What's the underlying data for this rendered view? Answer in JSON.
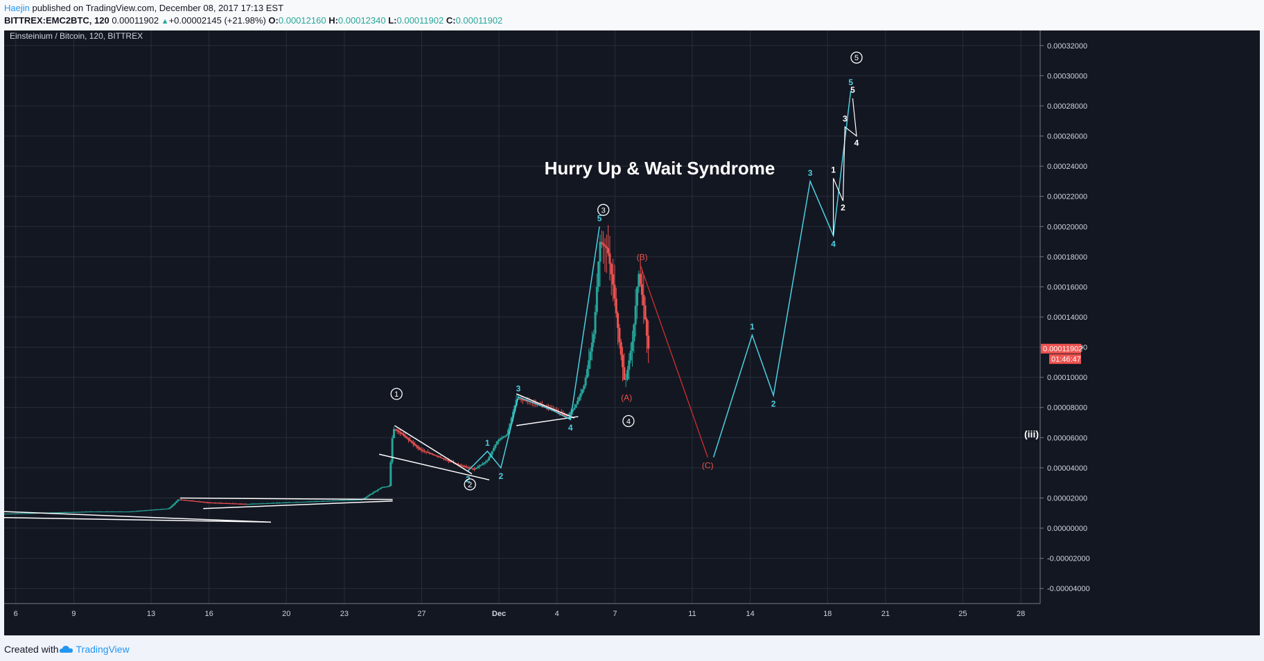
{
  "header": {
    "author": "Haejin",
    "published": " published on TradingView.com, December 08, 2017 17:13 EST",
    "symbol": "BITTREX:EMC2BTC, 120",
    "last": "0.00011902",
    "change": "+0.00002145 (+21.98%)",
    "o_label": "O:",
    "o": "0.00012160",
    "h_label": "H:",
    "h": "0.00012340",
    "l_label": "L:",
    "l": "0.00011902",
    "c_label": "C:",
    "c": "0.00011902"
  },
  "footer": {
    "created": "Created with",
    "brand": "TradingView"
  },
  "chart_data": {
    "type": "candlestick",
    "title": "Einsteinium / Bitcoin, 120, BITTREX",
    "annotation": "Hurry Up & Wait Syndrome",
    "ylim": [
      -5e-05,
      0.00033
    ],
    "y_ticks": [
      "0.00032000",
      "0.00030000",
      "0.00028000",
      "0.00026000",
      "0.00024000",
      "0.00022000",
      "0.00020000",
      "0.00018000",
      "0.00016000",
      "0.00014000",
      "0.00012000",
      "0.00010000",
      "0.00008000",
      "0.00006000",
      "0.00004000",
      "0.00002000",
      "0.00000000",
      "-0.00002000",
      "-0.00004000"
    ],
    "x_ticks": [
      "6",
      "9",
      "13",
      "16",
      "20",
      "23",
      "27",
      "Dec",
      "4",
      "7",
      "11",
      "14",
      "18",
      "21",
      "25",
      "28"
    ],
    "x_tick_days": [
      6,
      9,
      13,
      16,
      20,
      23,
      27,
      31,
      34,
      37,
      41,
      44,
      48,
      51,
      55,
      58
    ],
    "xlim": [
      5.4,
      59
    ],
    "price_label": "0.00011902",
    "countdown": "01:46:47",
    "price_path": [
      [
        5.4,
        9.5e-06
      ],
      [
        10,
        1.1e-05
      ],
      [
        12,
        1.1e-05
      ],
      [
        14,
        1.3e-05
      ],
      [
        14.5,
        1.9e-05
      ],
      [
        16,
        1.7e-05
      ],
      [
        18,
        1.6e-05
      ],
      [
        20,
        1.7e-05
      ],
      [
        22,
        1.8e-05
      ],
      [
        24,
        1.9e-05
      ],
      [
        25,
        2.7e-05
      ],
      [
        25.4,
        2.8e-05
      ],
      [
        25.6,
        6.6e-05
      ],
      [
        26,
        6.3e-05
      ],
      [
        27,
        5.2e-05
      ],
      [
        28,
        4.7e-05
      ],
      [
        29,
        4.2e-05
      ],
      [
        29.8,
        3.9e-05
      ],
      [
        30.5,
        4.5e-05
      ],
      [
        31,
        5.8e-05
      ],
      [
        31.5,
        6.2e-05
      ],
      [
        32,
        8.6e-05
      ],
      [
        33,
        8.3e-05
      ],
      [
        34,
        7.8e-05
      ],
      [
        34.6,
        7.4e-05
      ],
      [
        35,
        8e-05
      ],
      [
        35.5,
        9.5e-05
      ],
      [
        36,
        0.00013
      ],
      [
        36.3,
        0.00019
      ],
      [
        36.7,
        0.000185
      ],
      [
        37,
        0.00016
      ],
      [
        37.3,
        0.000125
      ],
      [
        37.6,
        9.5e-05
      ],
      [
        38,
        0.000125
      ],
      [
        38.3,
        0.00017
      ],
      [
        38.6,
        0.000145
      ],
      [
        38.8,
        0.000119
      ]
    ],
    "waves_cyan": [
      {
        "pts": [
          [
            29.4,
            3.8e-05
          ],
          [
            30.4,
            5.1e-05
          ],
          [
            31.1,
            4e-05
          ],
          [
            32,
            8.7e-05
          ],
          [
            33.8,
            7.8e-05
          ],
          [
            34.7,
            7.2e-05
          ],
          [
            36.2,
            0.0002
          ]
        ],
        "labels": [
          "2",
          "1",
          "2",
          "3",
          "",
          "4",
          "5"
        ]
      },
      {
        "pts": [
          [
            42.1,
            4.7e-05
          ],
          [
            44.1,
            0.000128
          ],
          [
            45.2,
            8.8e-05
          ],
          [
            47.1,
            0.00023
          ],
          [
            48.3,
            0.000194
          ],
          [
            49.2,
            0.00029
          ]
        ],
        "labels": [
          "",
          "1",
          "2",
          "3",
          "4",
          "5"
        ]
      }
    ],
    "wave_red": {
      "pts": [
        [
          38.3,
          0.000175
        ],
        [
          41.8,
          4.7e-05
        ]
      ],
      "labels": [
        "(B)",
        "(C)"
      ]
    },
    "wave_white": {
      "pts": [
        [
          48.3,
          0.000194
        ],
        [
          48.3,
          0.000232
        ],
        [
          48.8,
          0.000217
        ],
        [
          48.9,
          0.000266
        ],
        [
          49.5,
          0.00026
        ],
        [
          49.3,
          0.000285
        ]
      ],
      "labels": [
        "",
        "1",
        "2",
        "3",
        "4",
        "5"
      ]
    },
    "circled_labels": [
      "1",
      "2",
      "3",
      "4",
      "5"
    ],
    "a_label": "(A)",
    "iii_label": "(iii)"
  }
}
